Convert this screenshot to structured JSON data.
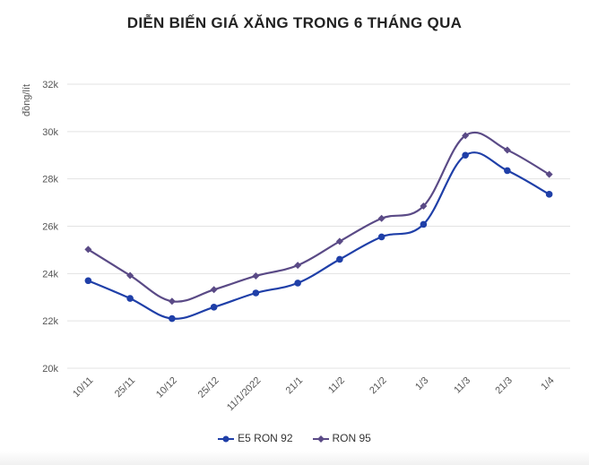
{
  "chart_data": {
    "type": "line",
    "title": "DIỄN BIẾN GIÁ XĂNG TRONG 6 THÁNG QUA",
    "xlabel": "",
    "ylabel": "đồng/lít",
    "categories": [
      "10/11",
      "25/11",
      "10/12",
      "25/12",
      "11/1/2022",
      "21/1",
      "11/2",
      "21/2",
      "1/3",
      "11/3",
      "21/3",
      "1/4"
    ],
    "ylim": [
      20000,
      32000
    ],
    "yticks": [
      20000,
      22000,
      24000,
      26000,
      28000,
      30000,
      32000
    ],
    "ytick_labels": [
      "20k",
      "22k",
      "24k",
      "26k",
      "28k",
      "30k",
      "32k"
    ],
    "grid": true,
    "legend_position": "bottom",
    "series": [
      {
        "name": "E5 RON 92",
        "color": "#1f3fa8",
        "marker": "circle",
        "values": [
          23700,
          22950,
          22100,
          22580,
          23180,
          23600,
          24600,
          25550,
          26080,
          29000,
          28350,
          27350
        ]
      },
      {
        "name": "RON 95",
        "color": "#5a4a86",
        "marker": "diamond",
        "values": [
          25020,
          23920,
          22830,
          23320,
          23900,
          24350,
          25360,
          26330,
          26850,
          29830,
          29220,
          28190
        ]
      }
    ]
  }
}
